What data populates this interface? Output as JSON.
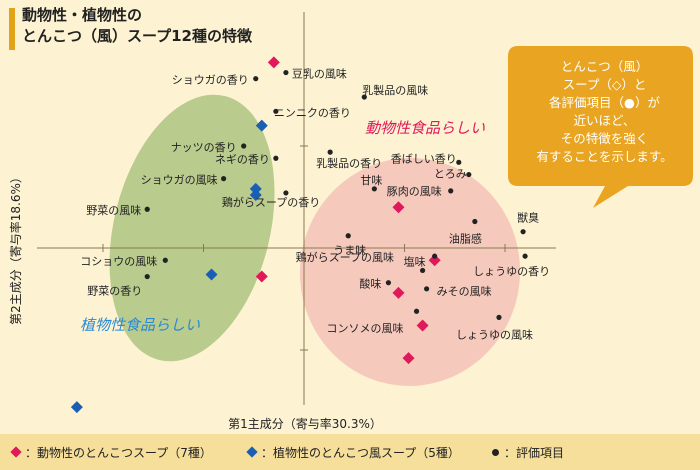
{
  "title": {
    "line1": "動物性・植物性の",
    "line2": "とんこつ（風）スープ12種の特徴"
  },
  "callout": {
    "lines": [
      "とんこつ（風）",
      "スープ（◇）と",
      "各評価項目（●）が",
      "近いほど、",
      "その特徴を強く",
      "有することを示します。"
    ]
  },
  "region_labels": {
    "animal": "動物性食品らしい",
    "plant": "植物性食品らしい"
  },
  "colors": {
    "animal": "#e0195a",
    "plant": "#1a5fb4",
    "item": "#222222",
    "animal_region": "#f6c9bd",
    "plant_region": "#bacb8e",
    "callout": "#e9a522"
  },
  "legend": {
    "animal": "：動物性のとんこつスープ（7種）",
    "plant": "：植物性のとんこつ風スープ（5種）",
    "item": "：評価項目"
  },
  "chart_data": {
    "type": "scatter",
    "xlabel": "第1主成分（寄与率30.3%）",
    "ylabel": "第2主成分（寄与率18.6%）",
    "xlim": [
      -1.5,
      1.25
    ],
    "ylim": [
      -0.95,
      1.03
    ],
    "grid": false,
    "series": [
      {
        "name": "動物性のとんこつスープ（7種）",
        "marker": "diamond",
        "color": "#e0195a",
        "points": [
          {
            "x": -0.15,
            "y": 0.91
          },
          {
            "x": 0.47,
            "y": 0.2
          },
          {
            "x": 0.65,
            "y": -0.06
          },
          {
            "x": -0.21,
            "y": -0.14
          },
          {
            "x": 0.47,
            "y": -0.22
          },
          {
            "x": 0.59,
            "y": -0.38
          },
          {
            "x": 0.52,
            "y": -0.54
          }
        ]
      },
      {
        "name": "植物性のとんこつ風スープ（5種）",
        "marker": "diamond",
        "color": "#1a5fb4",
        "points": [
          {
            "x": -0.21,
            "y": 0.6
          },
          {
            "x": -0.24,
            "y": 0.29
          },
          {
            "x": -0.24,
            "y": 0.26
          },
          {
            "x": -0.46,
            "y": -0.13
          },
          {
            "x": -1.13,
            "y": -0.78
          }
        ]
      },
      {
        "name": "評価項目",
        "marker": "dot",
        "color": "#222222",
        "points": [
          {
            "label": "豆乳の風味",
            "x": -0.09,
            "y": 0.86
          },
          {
            "label": "ショウガの香り",
            "x": -0.24,
            "y": 0.83
          },
          {
            "label": "乳製品の風味",
            "x": 0.3,
            "y": 0.74
          },
          {
            "label": "ニンニクの香り",
            "x": -0.14,
            "y": 0.67
          },
          {
            "label": "ナッツの香り",
            "x": -0.3,
            "y": 0.5
          },
          {
            "label": "ネギの香り",
            "x": -0.14,
            "y": 0.44
          },
          {
            "label": "乳製品の香り",
            "x": 0.13,
            "y": 0.47
          },
          {
            "label": "香ばしい香り",
            "x": 0.77,
            "y": 0.42
          },
          {
            "label": "とろみ",
            "x": 0.82,
            "y": 0.36
          },
          {
            "label": "ショウガの風味",
            "x": -0.4,
            "y": 0.34
          },
          {
            "label": "甘味",
            "x": 0.35,
            "y": 0.29
          },
          {
            "label": "豚肉の風味",
            "x": 0.73,
            "y": 0.28
          },
          {
            "label": "鶏がらスープの香り",
            "x": -0.09,
            "y": 0.27
          },
          {
            "label": "野菜の風味",
            "x": -0.78,
            "y": 0.19
          },
          {
            "label": "油脂感",
            "x": 0.85,
            "y": 0.13
          },
          {
            "label": "獣臭",
            "x": 1.09,
            "y": 0.08
          },
          {
            "label": "うま味",
            "x": 0.22,
            "y": 0.06
          },
          {
            "label": "鶏がらスープの風味",
            "x": 0.65,
            "y": -0.04
          },
          {
            "label": "しょうゆの香り",
            "x": 1.1,
            "y": -0.04
          },
          {
            "label": "コショウの風味",
            "x": -0.69,
            "y": -0.06
          },
          {
            "label": "塩味",
            "x": 0.59,
            "y": -0.11
          },
          {
            "label": "野菜の香り",
            "x": -0.78,
            "y": -0.14
          },
          {
            "label": "酸味",
            "x": 0.42,
            "y": -0.17
          },
          {
            "label": "みその風味",
            "x": 0.61,
            "y": -0.2
          },
          {
            "label": "コンソメの風味",
            "x": 0.56,
            "y": -0.31
          },
          {
            "label": "しょうゆの風味",
            "x": 0.97,
            "y": -0.34
          }
        ]
      }
    ]
  }
}
